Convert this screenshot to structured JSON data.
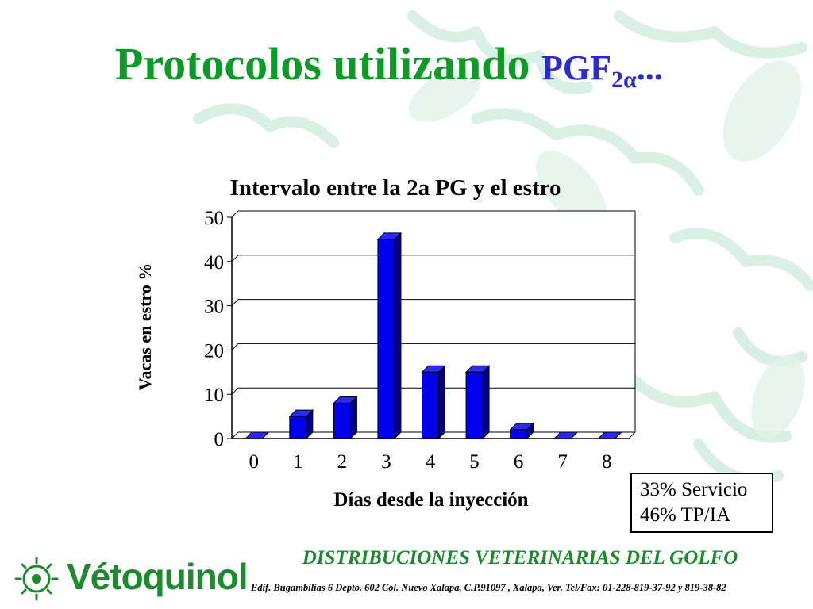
{
  "slide": {
    "title_main": "Protocolos utilizando",
    "title_formula": "PGF",
    "title_subscript": "2α",
    "title_ellipsis": "..."
  },
  "chart_data": {
    "type": "bar",
    "title": "Intervalo entre la 2a PG y el estro",
    "xlabel": "Días desde la inyección",
    "ylabel": "Vacas en estro %",
    "categories": [
      "0",
      "1",
      "2",
      "3",
      "4",
      "5",
      "6",
      "7",
      "8"
    ],
    "values": [
      0,
      5,
      8,
      45,
      15,
      15,
      2,
      0,
      0
    ],
    "yticks": [
      "0",
      "10",
      "20",
      "30",
      "40",
      "50"
    ],
    "ylim": [
      0,
      50
    ],
    "grid": true,
    "bar_color": "#0000ee"
  },
  "stats": {
    "line1": "33% Servicio",
    "line2": "46% TP/IA"
  },
  "footer": {
    "company": "DISTRIBUCIONES VETERINARIAS DEL GOLFO",
    "address": "Edif. Bugambilias 6 Depto. 602 Col. Nuevo Xalapa, C.P.91097 , Xalapa, Ver. Tel/Fax: 01-228-819-37-92 y 819-38-82",
    "logo_text": "Vétoquinol"
  },
  "colors": {
    "title_green": "#0e9a27",
    "formula_blue": "#2a2ad4",
    "company_green": "#1a8a2a",
    "watermark": "#cdeadd"
  }
}
